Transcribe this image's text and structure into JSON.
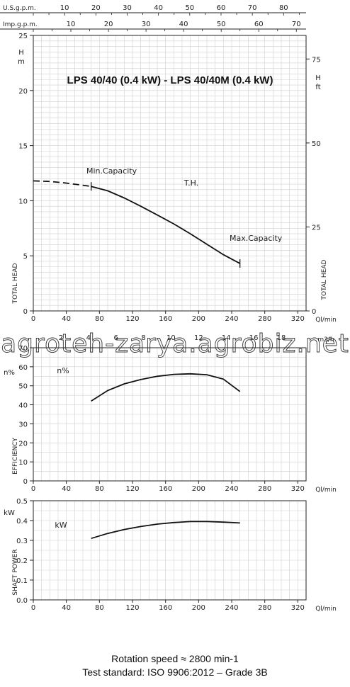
{
  "title": "LPS 40/40 (0.4 kW) - LPS 40/40M (0.4 kW)",
  "footer": {
    "rotation": "Rotation speed ≈ 2800 min-1",
    "standard": "Test standard: ISO 9906:2012 – Grade 3B"
  },
  "watermark": "agroteh-zarya.agrobiz.net",
  "colors": {
    "line": "#111111",
    "grid": "#d0d0d0",
    "frame": "#222222"
  },
  "chart_data": [
    {
      "type": "line",
      "title": "LPS 40/40 (0.4 kW) - LPS 40/40M (0.4 kW)",
      "xlabel": "Ql/min",
      "x_ticks": [
        0,
        40,
        80,
        120,
        160,
        200,
        240,
        280,
        320
      ],
      "xlim": [
        0,
        330
      ],
      "ylabel": "TOTAL HEAD",
      "y_unit": "m",
      "ylim": [
        0,
        25
      ],
      "y_ticks": [
        0,
        5,
        10,
        15,
        20,
        25
      ],
      "ylabel_right": "TOTAL HEAD",
      "y_unit_right": "ft",
      "y_ticks_right": [
        0,
        25,
        50,
        75
      ],
      "top_axes": [
        {
          "label": "U.S.g.p.m.",
          "ticks": [
            10,
            20,
            30,
            40,
            50,
            60,
            70,
            80
          ]
        },
        {
          "label": "Imp.g.p.m.",
          "ticks": [
            10,
            20,
            30,
            40,
            50,
            60,
            70
          ]
        }
      ],
      "bottom_axis_secondary": {
        "label": "m3/h",
        "ticks": [
          2,
          4,
          6,
          8,
          10,
          12,
          14,
          16,
          18,
          20
        ]
      },
      "grid": true,
      "annotations": {
        "curve": "T.H.",
        "min_capacity": "Min.Capacity",
        "max_capacity": "Max.Capacity"
      },
      "series": [
        {
          "name": "T.H.",
          "x": [
            0,
            20,
            40,
            60,
            70,
            90,
            110,
            130,
            150,
            170,
            190,
            210,
            230,
            250
          ],
          "y": [
            11.8,
            11.75,
            11.6,
            11.4,
            11.3,
            10.9,
            10.25,
            9.5,
            8.7,
            7.9,
            7.0,
            6.05,
            5.1,
            4.3
          ],
          "dashed_until_x": 70,
          "markers_at_x": [
            70,
            250
          ]
        }
      ]
    },
    {
      "type": "line",
      "xlabel": "Ql/min",
      "x_ticks": [
        0,
        40,
        80,
        120,
        160,
        200,
        240,
        280,
        320
      ],
      "xlim": [
        0,
        330
      ],
      "ylabel": "EFFICIENCY",
      "y_unit": "n%",
      "ylim": [
        0,
        70
      ],
      "y_ticks": [
        0,
        10,
        20,
        30,
        40,
        50,
        60,
        70
      ],
      "grid": true,
      "annotations": {
        "curve": "n%"
      },
      "series": [
        {
          "name": "n%",
          "x": [
            70,
            90,
            110,
            130,
            150,
            170,
            190,
            210,
            230,
            250
          ],
          "y": [
            42,
            47.5,
            51,
            53.3,
            55,
            56,
            56.3,
            55.8,
            53.5,
            47
          ]
        }
      ]
    },
    {
      "type": "line",
      "xlabel": "Ql/min",
      "x_ticks": [
        0,
        40,
        80,
        120,
        160,
        200,
        240,
        280,
        320
      ],
      "xlim": [
        0,
        330
      ],
      "ylabel": "SHAFT POWER",
      "y_unit": "kW",
      "ylim": [
        0,
        0.5
      ],
      "y_ticks": [
        0,
        0.1,
        0.2,
        0.3,
        0.4,
        0.5
      ],
      "grid": true,
      "annotations": {
        "curve": "kW"
      },
      "series": [
        {
          "name": "kW",
          "x": [
            70,
            90,
            110,
            130,
            150,
            170,
            190,
            210,
            230,
            250
          ],
          "y": [
            0.31,
            0.335,
            0.355,
            0.37,
            0.382,
            0.39,
            0.395,
            0.395,
            0.392,
            0.388
          ]
        }
      ]
    }
  ]
}
